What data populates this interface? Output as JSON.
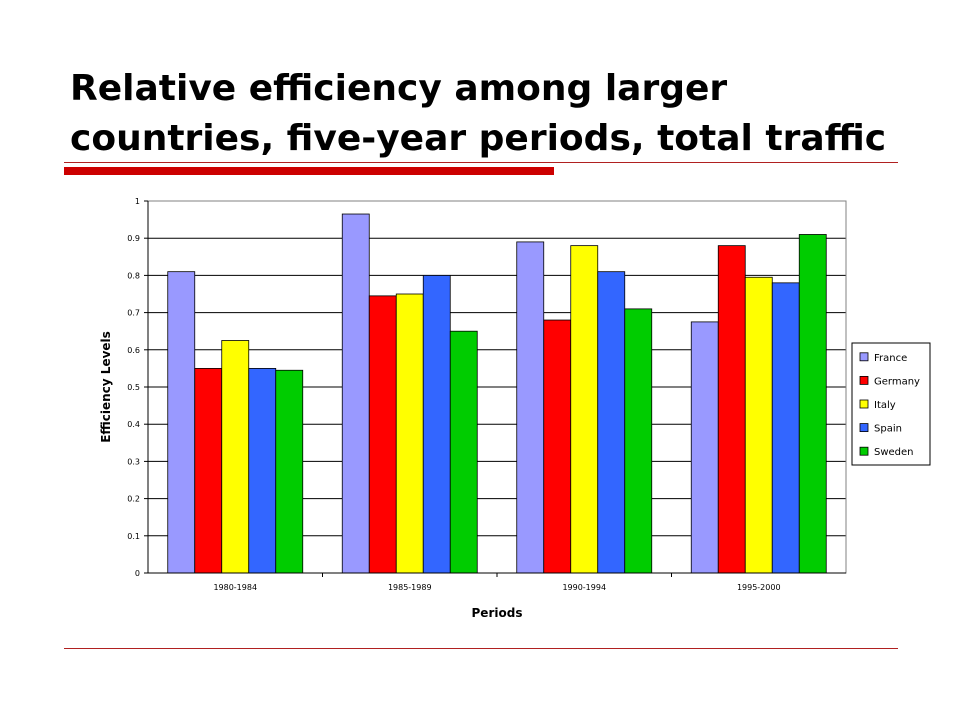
{
  "slide": {
    "title_line1": "Relative efficiency among larger",
    "title_line2": "countries, five-year periods, total traffic",
    "accent_color": "#cc0000"
  },
  "chart_data": {
    "type": "bar",
    "title": "",
    "xlabel": "Periods",
    "ylabel": "Efficiency Levels",
    "categories": [
      "1980-1984",
      "1985-1989",
      "1990-1994",
      "1995-2000"
    ],
    "ylim": [
      0,
      1
    ],
    "yticks": [
      "0",
      "0.1",
      "0.2",
      "0.3",
      "0.4",
      "0.5",
      "0.6",
      "0.7",
      "0.8",
      "0.9",
      "1"
    ],
    "grid": true,
    "legend_position": "right",
    "series": [
      {
        "name": "France",
        "color": "#9999ff",
        "values": [
          0.81,
          0.965,
          0.89,
          0.675
        ]
      },
      {
        "name": "Germany",
        "color": "#ff0000",
        "values": [
          0.55,
          0.745,
          0.68,
          0.88
        ]
      },
      {
        "name": "Italy",
        "color": "#ffff00",
        "values": [
          0.625,
          0.75,
          0.88,
          0.795
        ]
      },
      {
        "name": "Spain",
        "color": "#3366ff",
        "values": [
          0.55,
          0.8,
          0.81,
          0.78
        ]
      },
      {
        "name": "Sweden",
        "color": "#00cc00",
        "values": [
          0.545,
          0.65,
          0.71,
          0.91
        ]
      }
    ]
  }
}
